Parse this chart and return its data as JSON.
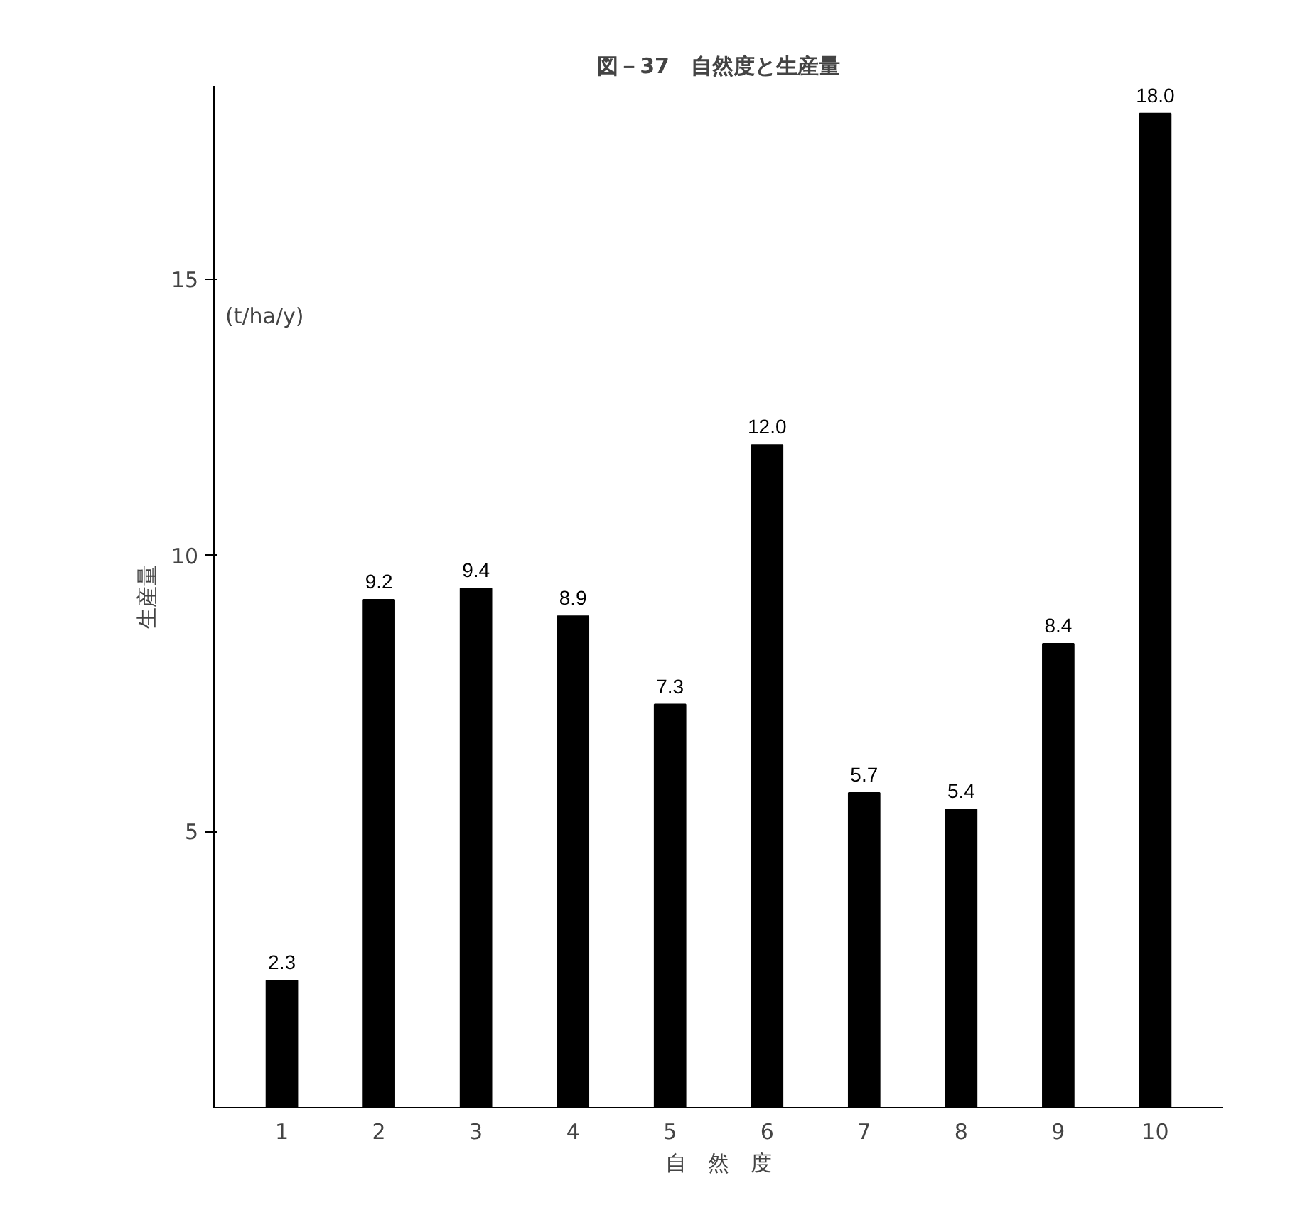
{
  "chart_data": {
    "type": "bar",
    "title": "図－37　自然度と生産量",
    "xlabel": "自　然　度",
    "ylabel": "生産量",
    "annotations": [
      "(t/ha/y)"
    ],
    "categories": [
      "1",
      "2",
      "3",
      "4",
      "5",
      "6",
      "7",
      "8",
      "9",
      "10"
    ],
    "values": [
      2.3,
      9.2,
      9.4,
      8.9,
      7.3,
      12.0,
      5.7,
      5.4,
      8.4,
      18.0
    ],
    "value_labels": [
      "2.3",
      "9.2",
      "9.4",
      "8.9",
      "7.3",
      "12.0",
      "5.7",
      "5.4",
      "8.4",
      "18.0"
    ],
    "color": "#000000",
    "ylim": [
      0,
      18.5
    ],
    "yticks": [
      5,
      10,
      15
    ],
    "grid": false
  }
}
